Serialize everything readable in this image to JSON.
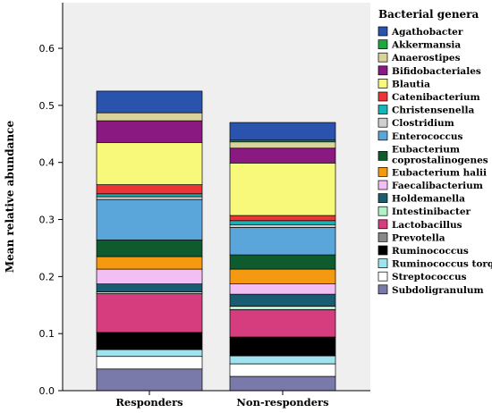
{
  "chart_data": {
    "type": "bar",
    "stacked": true,
    "title": "",
    "xlabel": "",
    "ylabel": "Mean relative abundance",
    "ylim": [
      0,
      0.68
    ],
    "yticks": [
      "0.0",
      "0.1",
      "0.2",
      "0.3",
      "0.4",
      "0.5",
      "0.6"
    ],
    "grid": false,
    "legend_title": "Bacterial genera",
    "legend_position": "right",
    "categories": [
      "Responders",
      "Non-responders"
    ],
    "series": [
      {
        "name": "Subdoligranulum",
        "color": "#7a7aaa",
        "values": [
          0.038,
          0.025
        ]
      },
      {
        "name": "Streptococcus",
        "color": "#ffffff",
        "values": [
          0.022,
          0.022
        ]
      },
      {
        "name": "Ruminococcus torque",
        "color": "#9fe3ef",
        "values": [
          0.012,
          0.014
        ]
      },
      {
        "name": "Ruminococcus",
        "color": "#000000",
        "values": [
          0.03,
          0.033
        ]
      },
      {
        "name": "Prevotella",
        "color": "#888888",
        "values": [
          0.0,
          0.0
        ]
      },
      {
        "name": "Lactobacillus",
        "color": "#d63d7e",
        "values": [
          0.068,
          0.048
        ]
      },
      {
        "name": "Intestinibacter",
        "color": "#b4f0c8",
        "values": [
          0.003,
          0.006
        ]
      },
      {
        "name": "Holdemanella",
        "color": "#1a5c72",
        "values": [
          0.014,
          0.021
        ]
      },
      {
        "name": "Faecalibacterium",
        "color": "#f2bff5",
        "values": [
          0.026,
          0.018
        ]
      },
      {
        "name": "Eubacterium halii",
        "color": "#f59a10",
        "values": [
          0.022,
          0.026
        ]
      },
      {
        "name": "Eubacterium coprostalinogenes",
        "color": "#0e5c2e",
        "values": [
          0.029,
          0.025
        ]
      },
      {
        "name": "Enterococcus",
        "color": "#5aa5d9",
        "values": [
          0.071,
          0.048
        ]
      },
      {
        "name": "Clostridium",
        "color": "#cfcfcf",
        "values": [
          0.005,
          0.005
        ]
      },
      {
        "name": "Christensenella",
        "color": "#17b5b5",
        "values": [
          0.005,
          0.007
        ]
      },
      {
        "name": "Catenibacterium",
        "color": "#ee3535",
        "values": [
          0.016,
          0.009
        ]
      },
      {
        "name": "Blautia",
        "color": "#f8f87a",
        "values": [
          0.074,
          0.092
        ]
      },
      {
        "name": "Bifidobacteriales",
        "color": "#8a1a82",
        "values": [
          0.038,
          0.026
        ]
      },
      {
        "name": "Anaerostipes",
        "color": "#d9d29a",
        "values": [
          0.014,
          0.011
        ]
      },
      {
        "name": "Akkermansia",
        "color": "#1aaa3c",
        "values": [
          0.0,
          0.003
        ]
      },
      {
        "name": "Agathobacter",
        "color": "#2a53ad",
        "values": [
          0.038,
          0.031
        ]
      }
    ],
    "legend_order": [
      "Agathobacter",
      "Akkermansia",
      "Anaerostipes",
      "Bifidobacteriales",
      "Blautia",
      "Catenibacterium",
      "Christensenella",
      "Clostridium",
      "Enterococcus",
      "Eubacterium coprostalinogenes",
      "Eubacterium halii",
      "Faecalibacterium",
      "Holdemanella",
      "Intestinibacter",
      "Lactobacillus",
      "Prevotella",
      "Ruminococcus",
      "Ruminococcus torque",
      "Streptococcus",
      "Subdoligranulum"
    ]
  },
  "legend_labels": {
    "Eubacterium coprostalinogenes": [
      "Eubacterium",
      "coprostalinogenes"
    ]
  },
  "colors": {
    "plot_background": "#efefef",
    "axis": "#000000"
  }
}
